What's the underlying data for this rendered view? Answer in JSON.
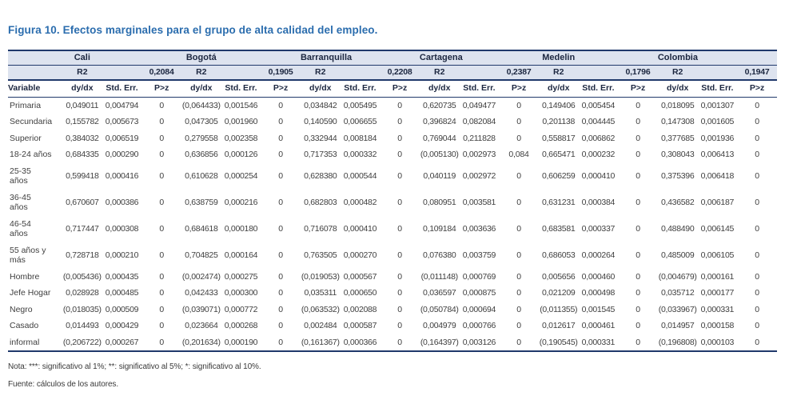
{
  "title": "Figura 10. Efectos marginales para el grupo de alta calidad del empleo.",
  "colors": {
    "title_blue": "#2B6DAE",
    "table_border_navy": "#20396B",
    "header_fill": "#DDE3EF",
    "body_text": "#3F3F3F"
  },
  "table": {
    "r2_label": "R2",
    "headers": {
      "variable": "Variable",
      "dydx": "dy/dx",
      "stderr": "Std. Err.",
      "pz": "P>z"
    },
    "cities": [
      {
        "name": "Cali",
        "r2": "0,2084"
      },
      {
        "name": "Bogotá",
        "r2": "0,1905"
      },
      {
        "name": "Barranquilla",
        "r2": "0,2208"
      },
      {
        "name": "Cartagena",
        "r2": "0,2387"
      },
      {
        "name": "Medelin",
        "r2": "0,1796"
      },
      {
        "name": "Colombia",
        "r2": "0,1947"
      }
    ],
    "rows": [
      {
        "variable": "Primaria",
        "cells": [
          [
            "0,049011",
            "0,004794",
            "0"
          ],
          [
            "(0,064433)",
            "0,001546",
            "0"
          ],
          [
            "0,034842",
            "0,005495",
            "0"
          ],
          [
            "0,620735",
            "0,049477",
            "0"
          ],
          [
            "0,149406",
            "0,005454",
            "0"
          ],
          [
            "0,018095",
            "0,001307",
            "0"
          ]
        ]
      },
      {
        "variable": "Secundaria",
        "cells": [
          [
            "0,155782",
            "0,005673",
            "0"
          ],
          [
            "0,047305",
            "0,001960",
            "0"
          ],
          [
            "0,140590",
            "0,006655",
            "0"
          ],
          [
            "0,396824",
            "0,082084",
            "0"
          ],
          [
            "0,201138",
            "0,004445",
            "0"
          ],
          [
            "0,147308",
            "0,001605",
            "0"
          ]
        ]
      },
      {
        "variable": "Superior",
        "cells": [
          [
            "0,384032",
            "0,006519",
            "0"
          ],
          [
            "0,279558",
            "0,002358",
            "0"
          ],
          [
            "0,332944",
            "0,008184",
            "0"
          ],
          [
            "0,769044",
            "0,211828",
            "0"
          ],
          [
            "0,558817",
            "0,006862",
            "0"
          ],
          [
            "0,377685",
            "0,001936",
            "0"
          ]
        ]
      },
      {
        "variable": "18-24 años",
        "cells": [
          [
            "0,684335",
            "0,000290",
            "0"
          ],
          [
            "0,636856",
            "0,000126",
            "0"
          ],
          [
            "0,717353",
            "0,000332",
            "0"
          ],
          [
            "(0,005130)",
            "0,002973",
            "0,084"
          ],
          [
            "0,665471",
            "0,000232",
            "0"
          ],
          [
            "0,308043",
            "0,006413",
            "0"
          ]
        ]
      },
      {
        "variable": "25-35\naños",
        "cells": [
          [
            "0,599418",
            "0,000416",
            "0"
          ],
          [
            "0,610628",
            "0,000254",
            "0"
          ],
          [
            "0,628380",
            "0,000544",
            "0"
          ],
          [
            "0,040119",
            "0,002972",
            "0"
          ],
          [
            "0,606259",
            "0,000410",
            "0"
          ],
          [
            "0,375396",
            "0,006418",
            "0"
          ]
        ]
      },
      {
        "variable": "36-45\naños",
        "cells": [
          [
            "0,670607",
            "0,000386",
            "0"
          ],
          [
            "0,638759",
            "0,000216",
            "0"
          ],
          [
            "0,682803",
            "0,000482",
            "0"
          ],
          [
            "0,080951",
            "0,003581",
            "0"
          ],
          [
            "0,631231",
            "0,000384",
            "0"
          ],
          [
            "0,436582",
            "0,006187",
            "0"
          ]
        ]
      },
      {
        "variable": "46-54\naños",
        "cells": [
          [
            "0,717447",
            "0,000308",
            "0"
          ],
          [
            "0,684618",
            "0,000180",
            "0"
          ],
          [
            "0,716078",
            "0,000410",
            "0"
          ],
          [
            "0,109184",
            "0,003636",
            "0"
          ],
          [
            "0,683581",
            "0,000337",
            "0"
          ],
          [
            "0,488490",
            "0,006145",
            "0"
          ]
        ]
      },
      {
        "variable": "55 años y\nmás",
        "cells": [
          [
            "0,728718",
            "0,000210",
            "0"
          ],
          [
            "0,704825",
            "0,000164",
            "0"
          ],
          [
            "0,763505",
            "0,000270",
            "0"
          ],
          [
            "0,076380",
            "0,003759",
            "0"
          ],
          [
            "0,686053",
            "0,000264",
            "0"
          ],
          [
            "0,485009",
            "0,006105",
            "0"
          ]
        ]
      },
      {
        "variable": "Hombre",
        "cells": [
          [
            "(0,005436)",
            "0,000435",
            "0"
          ],
          [
            "(0,002474)",
            "0,000275",
            "0"
          ],
          [
            "(0,019053)",
            "0,000567",
            "0"
          ],
          [
            "(0,011148)",
            "0,000769",
            "0"
          ],
          [
            "0,005656",
            "0,000460",
            "0"
          ],
          [
            "(0,004679)",
            "0,000161",
            "0"
          ]
        ]
      },
      {
        "variable": "Jefe Hogar",
        "cells": [
          [
            "0,028928",
            "0,000485",
            "0"
          ],
          [
            "0,042433",
            "0,000300",
            "0"
          ],
          [
            "0,035311",
            "0,000650",
            "0"
          ],
          [
            "0,036597",
            "0,000875",
            "0"
          ],
          [
            "0,021209",
            "0,000498",
            "0"
          ],
          [
            "0,035712",
            "0,000177",
            "0"
          ]
        ]
      },
      {
        "variable": "Negro",
        "cells": [
          [
            "(0,018035)",
            "0,000509",
            "0"
          ],
          [
            "(0,039071)",
            "0,000772",
            "0"
          ],
          [
            "(0,063532)",
            "0,002088",
            "0"
          ],
          [
            "(0,050784)",
            "0,000694",
            "0"
          ],
          [
            "(0,011355)",
            "0,001545",
            "0"
          ],
          [
            "(0,033967)",
            "0,000331",
            "0"
          ]
        ]
      },
      {
        "variable": "Casado",
        "cells": [
          [
            "0,014493",
            "0,000429",
            "0"
          ],
          [
            "0,023664",
            "0,000268",
            "0"
          ],
          [
            "0,002484",
            "0,000587",
            "0"
          ],
          [
            "0,004979",
            "0,000766",
            "0"
          ],
          [
            "0,012617",
            "0,000461",
            "0"
          ],
          [
            "0,014957",
            "0,000158",
            "0"
          ]
        ]
      },
      {
        "variable": "informal",
        "cells": [
          [
            "(0,206722)",
            "0,000267",
            "0"
          ],
          [
            "(0,201634)",
            "0,000190",
            "0"
          ],
          [
            "(0,161367)",
            "0,000366",
            "0"
          ],
          [
            "(0,164397)",
            "0,003126",
            "0"
          ],
          [
            "(0,190545)",
            "0,000331",
            "0"
          ],
          [
            "(0,196808)",
            "0,000103",
            "0"
          ]
        ]
      }
    ]
  },
  "note": "Nota: ***: significativo al 1%; **: significativo al 5%; *: significativo al 10%.",
  "source": "Fuente: cálculos de los autores."
}
